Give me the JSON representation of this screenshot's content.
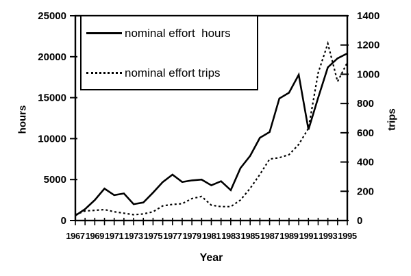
{
  "chart_data": {
    "type": "line",
    "title": "",
    "xlabel": "Year",
    "x": [
      1967,
      1968,
      1969,
      1970,
      1971,
      1972,
      1973,
      1974,
      1975,
      1976,
      1977,
      1978,
      1979,
      1980,
      1981,
      1982,
      1983,
      1984,
      1985,
      1986,
      1987,
      1988,
      1989,
      1990,
      1991,
      1992,
      1993,
      1994,
      1995
    ],
    "x_ticks": [
      1967,
      1969,
      1971,
      1973,
      1975,
      1977,
      1979,
      1981,
      1983,
      1985,
      1987,
      1989,
      1991,
      1993,
      1995
    ],
    "left_axis": {
      "label": "hours",
      "min": 0,
      "max": 25000,
      "step": 5000
    },
    "right_axis": {
      "label": "trips",
      "min": 0,
      "max": 1400,
      "step": 200
    },
    "grid": false,
    "legend_position": "top-left",
    "line_color": "#000000",
    "background_color": "#ffffff",
    "series": [
      {
        "name": "nominal effort  hours",
        "axis": "left",
        "line_style": "solid",
        "values": [
          600,
          1400,
          2500,
          3900,
          3100,
          3300,
          2000,
          2200,
          3400,
          4700,
          5600,
          4700,
          4900,
          5000,
          4300,
          4800,
          3700,
          6400,
          7900,
          10100,
          10800,
          14900,
          15600,
          17800,
          11100,
          15000,
          18700,
          19800,
          20400
        ]
      },
      {
        "name": "nominal effort trips",
        "axis": "right",
        "line_style": "dotted",
        "values": [
          40,
          65,
          70,
          75,
          60,
          50,
          40,
          45,
          60,
          100,
          110,
          115,
          150,
          165,
          105,
          95,
          95,
          140,
          220,
          315,
          420,
          430,
          450,
          520,
          630,
          1010,
          1210,
          950,
          1080
        ]
      }
    ]
  }
}
